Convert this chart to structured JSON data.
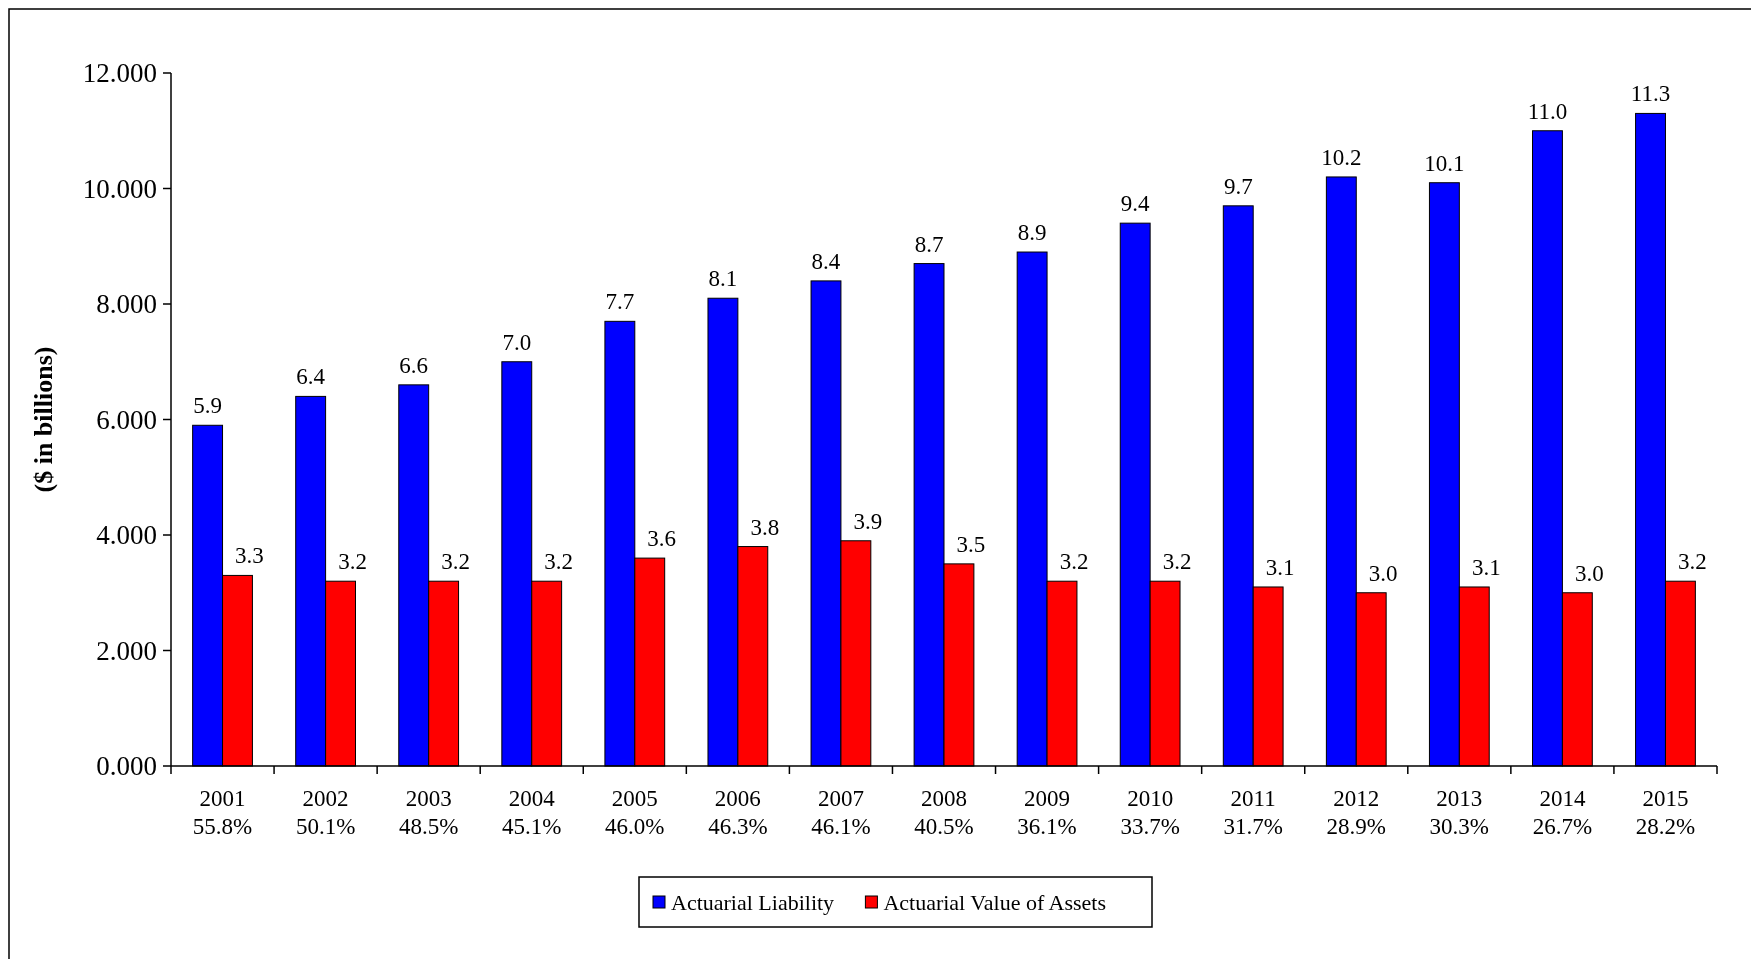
{
  "chart_data": {
    "type": "bar",
    "ylabel": "($ in billions)",
    "categories": [
      "2001\n55.8%",
      "2002\n50.1%",
      "2003\n48.5%",
      "2004\n45.1%",
      "2005\n46.0%",
      "2006\n46.3%",
      "2007\n46.1%",
      "2008\n40.5%",
      "2009\n36.1%",
      "2010\n33.7%",
      "2011\n31.7%",
      "2012\n28.9%",
      "2013\n30.3%",
      "2014\n26.7%",
      "2015\n28.2%"
    ],
    "series": [
      {
        "name": "Actuarial Liability",
        "color": "#0000ff",
        "values": [
          5.9,
          6.4,
          6.6,
          7.0,
          7.7,
          8.1,
          8.4,
          8.7,
          8.9,
          9.4,
          9.7,
          10.2,
          10.1,
          11.0,
          11.3
        ],
        "value_labels": [
          "5.9",
          "6.4",
          "6.6",
          "7.0",
          "7.7",
          "8.1",
          "8.4",
          "8.7",
          "8.9",
          "9.4",
          "9.7",
          "10.2",
          "10.1",
          "11.0",
          "11.3"
        ]
      },
      {
        "name": "Actuarial Value of Assets",
        "color": "#ff0000",
        "values": [
          3.3,
          3.2,
          3.2,
          3.2,
          3.6,
          3.8,
          3.9,
          3.5,
          3.2,
          3.2,
          3.1,
          3.0,
          3.1,
          3.0,
          3.2
        ],
        "value_labels": [
          "3.3",
          "3.2",
          "3.2",
          "3.2",
          "3.6",
          "3.8",
          "3.9",
          "3.5",
          "3.2",
          "3.2",
          "3.1",
          "3.0",
          "3.1",
          "3.0",
          "3.2"
        ]
      }
    ],
    "ylim": [
      0,
      12
    ],
    "yticks": [
      {
        "value": 0,
        "label": "0.000"
      },
      {
        "value": 2,
        "label": "2.000"
      },
      {
        "value": 4,
        "label": "4.000"
      },
      {
        "value": 6,
        "label": "6.000"
      },
      {
        "value": 8,
        "label": "8.000"
      },
      {
        "value": 10,
        "label": "10.000"
      },
      {
        "value": 12,
        "label": "12.000"
      }
    ],
    "legend": "bottom",
    "grid": false
  }
}
